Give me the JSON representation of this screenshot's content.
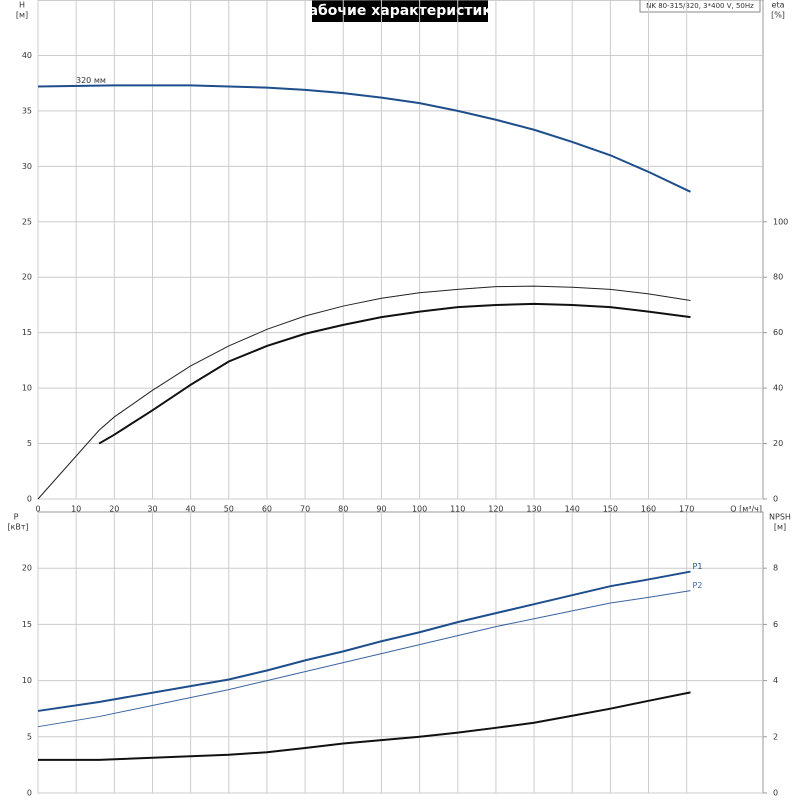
{
  "chart_data": [
    {
      "type": "line",
      "title": "Рабочие характеристики",
      "annotation": "NK 80-315/320, 3*400 V, 50Hz",
      "xlabel": "Q [м³/ч]",
      "ylabel": "H",
      "yunit": "[м]",
      "y2label": "eta",
      "y2unit": "[%]",
      "xlim": [
        0,
        190
      ],
      "xticks": [
        0,
        10,
        20,
        30,
        40,
        50,
        60,
        70,
        80,
        90,
        100,
        110,
        120,
        130,
        140,
        150,
        160,
        170
      ],
      "ylim": [
        0,
        45
      ],
      "yticks": [
        0,
        5,
        10,
        15,
        20,
        25,
        30,
        35,
        40
      ],
      "y2lim": [
        0,
        180
      ],
      "y2ticks": [
        0,
        20,
        40,
        60,
        80,
        100
      ],
      "grid": true,
      "series": [
        {
          "name": "320 мм",
          "color": "#1f4e8c",
          "line_width": 2,
          "x": [
            0,
            20,
            40,
            50,
            60,
            70,
            80,
            90,
            100,
            110,
            120,
            130,
            140,
            150,
            160,
            171
          ],
          "values": [
            37.2,
            37.3,
            37.3,
            37.2,
            37.1,
            36.9,
            36.6,
            36.2,
            35.7,
            35.0,
            34.2,
            33.3,
            32.2,
            31.0,
            29.5,
            27.7
          ]
        },
        {
          "color": "#222222",
          "line_width": 1,
          "axis": "y2",
          "x": [
            0,
            16,
            20,
            30,
            40,
            50,
            60,
            70,
            80,
            90,
            100,
            110,
            120,
            130,
            140,
            150,
            160,
            171
          ],
          "values": [
            0,
            24.8,
            29.6,
            39.2,
            48,
            55.2,
            61.2,
            66,
            69.6,
            72.4,
            74.4,
            75.6,
            76.6,
            76.8,
            76.4,
            75.6,
            74,
            71.6
          ]
        },
        {
          "color": "#111111",
          "line_width": 2,
          "axis": "y2",
          "x": [
            16,
            20,
            30,
            40,
            50,
            60,
            70,
            80,
            90,
            100,
            110,
            120,
            130,
            140,
            150,
            160,
            171
          ],
          "values": [
            20,
            23.2,
            32,
            41.2,
            49.6,
            55.2,
            59.6,
            62.8,
            65.6,
            67.6,
            69.2,
            70,
            70.4,
            70,
            69.2,
            67.6,
            65.6
          ]
        }
      ]
    },
    {
      "type": "line",
      "ylabel": "P",
      "yunit": "[кВт]",
      "y2label": "NPSH",
      "y2unit": "[м]",
      "xlim": [
        0,
        190
      ],
      "ylim": [
        0,
        25
      ],
      "yticks": [
        0,
        5,
        10,
        15,
        20
      ],
      "y2lim": [
        0,
        10
      ],
      "y2ticks": [
        0,
        2,
        4,
        6,
        8
      ],
      "grid": true,
      "series": [
        {
          "name": "P1",
          "color": "#1f4e8c",
          "line_width": 2,
          "x": [
            0,
            16,
            50,
            60,
            70,
            80,
            90,
            100,
            110,
            120,
            130,
            140,
            150,
            160,
            171
          ],
          "values": [
            7.3,
            8.1,
            10.1,
            10.9,
            11.8,
            12.6,
            13.5,
            14.3,
            15.2,
            16.0,
            16.8,
            17.6,
            18.4,
            19.0,
            19.7
          ]
        },
        {
          "name": "P2",
          "color": "#3a64a0",
          "line_width": 1,
          "x": [
            0,
            16,
            50,
            60,
            70,
            80,
            90,
            100,
            110,
            120,
            130,
            140,
            150,
            160,
            171
          ],
          "values": [
            5.9,
            6.8,
            9.2,
            10.0,
            10.8,
            11.6,
            12.4,
            13.2,
            14.0,
            14.8,
            15.5,
            16.2,
            16.9,
            17.4,
            18.0
          ]
        },
        {
          "color": "#111111",
          "line_width": 2,
          "axis": "y2",
          "x": [
            0,
            16,
            50,
            60,
            70,
            80,
            90,
            100,
            110,
            120,
            130,
            140,
            150,
            160,
            171
          ],
          "values": [
            1.18,
            1.18,
            1.36,
            1.45,
            1.6,
            1.76,
            1.88,
            2.0,
            2.15,
            2.32,
            2.5,
            2.75,
            3.0,
            3.28,
            3.58
          ]
        }
      ]
    }
  ]
}
